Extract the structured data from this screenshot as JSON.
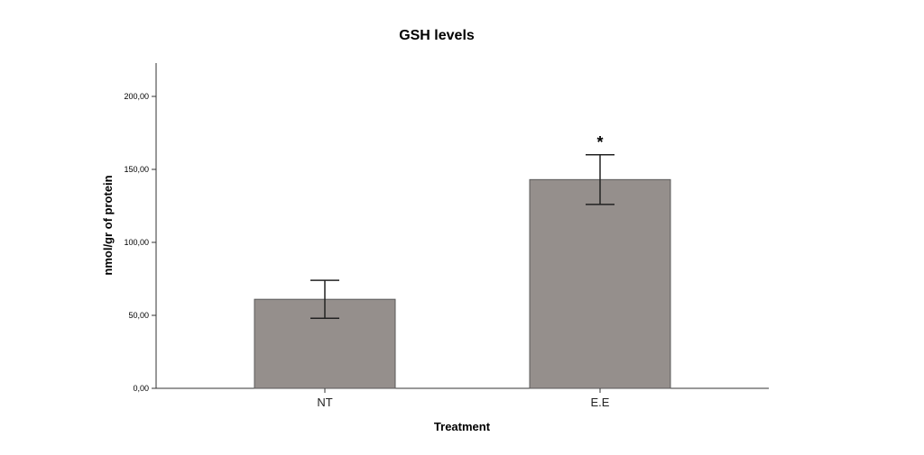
{
  "chart_data": {
    "type": "bar",
    "title": "GSH levels",
    "xlabel": "Treatment",
    "ylabel": "nmol/gr of protein",
    "categories": [
      "NT",
      "E.E"
    ],
    "values": [
      61,
      143
    ],
    "error_low": [
      48,
      126
    ],
    "error_high": [
      74,
      160
    ],
    "annotations": [
      "",
      "*"
    ],
    "ylim": [
      0,
      200
    ],
    "yticks": [
      0,
      50,
      100,
      150,
      200
    ],
    "ytick_labels": [
      "0,00",
      "50,00",
      "100,00",
      "150,00",
      "200,00"
    ],
    "grid": false,
    "bar_color": "#958f8c",
    "bar_edge_color": "#5a5a5a"
  }
}
